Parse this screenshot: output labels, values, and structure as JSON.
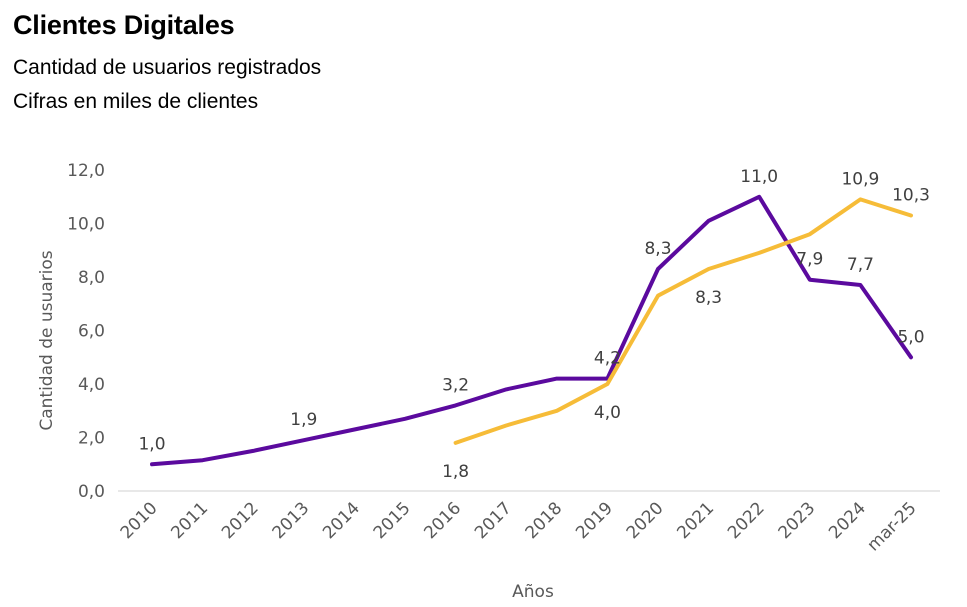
{
  "header": {
    "title": "Clientes Digitales",
    "subtitle_1": "Cantidad de usuarios registrados",
    "subtitle_2": "Cifras en miles de clientes"
  },
  "chart_data": {
    "type": "line",
    "title": "Clientes Digitales",
    "subtitle": [
      "Cantidad de usuarios registrados",
      "Cifras en miles de clientes"
    ],
    "xlabel": "Años",
    "ylabel": "Cantidad de usuarios",
    "ylim": [
      0,
      12
    ],
    "yticks": [
      0,
      2,
      4,
      6,
      8,
      10,
      12
    ],
    "ytick_labels": [
      "0,0",
      "2,0",
      "4,0",
      "6,0",
      "8,0",
      "10,0",
      "12,0"
    ],
    "grid": false,
    "legend": "none",
    "categories": [
      "2010",
      "2011",
      "2012",
      "2013",
      "2014",
      "2015",
      "2016",
      "2017",
      "2018",
      "2019",
      "2020",
      "2021",
      "2022",
      "2023",
      "2024",
      "mar-25"
    ],
    "series": [
      {
        "name": "Serie morada",
        "color": "#5B0A9E",
        "values": [
          1.0,
          1.15,
          1.5,
          1.9,
          2.3,
          2.7,
          3.2,
          3.8,
          4.2,
          4.2,
          8.3,
          10.1,
          11.0,
          7.9,
          7.7,
          5.0
        ],
        "labels": [
          {
            "index": 0,
            "text": "1,0",
            "pos": "above"
          },
          {
            "index": 3,
            "text": "1,9",
            "pos": "above"
          },
          {
            "index": 6,
            "text": "3,2",
            "pos": "above"
          },
          {
            "index": 9,
            "text": "4,2",
            "pos": "above"
          },
          {
            "index": 10,
            "text": "8,3",
            "pos": "above"
          },
          {
            "index": 12,
            "text": "11,0",
            "pos": "above"
          },
          {
            "index": 13,
            "text": "7,9",
            "pos": "above"
          },
          {
            "index": 14,
            "text": "7,7",
            "pos": "above"
          },
          {
            "index": 15,
            "text": "5,0",
            "pos": "above"
          }
        ]
      },
      {
        "name": "Serie amarilla",
        "color": "#F6BC38",
        "values": [
          null,
          null,
          null,
          null,
          null,
          null,
          1.8,
          2.45,
          3.0,
          4.0,
          7.3,
          8.3,
          8.9,
          9.6,
          10.9,
          10.3
        ],
        "labels": [
          {
            "index": 6,
            "text": "1,8",
            "pos": "below"
          },
          {
            "index": 9,
            "text": "4,0",
            "pos": "below"
          },
          {
            "index": 11,
            "text": "8,3",
            "pos": "below"
          },
          {
            "index": 14,
            "text": "10,9",
            "pos": "above"
          },
          {
            "index": 15,
            "text": "10,3",
            "pos": "above"
          }
        ]
      }
    ]
  }
}
